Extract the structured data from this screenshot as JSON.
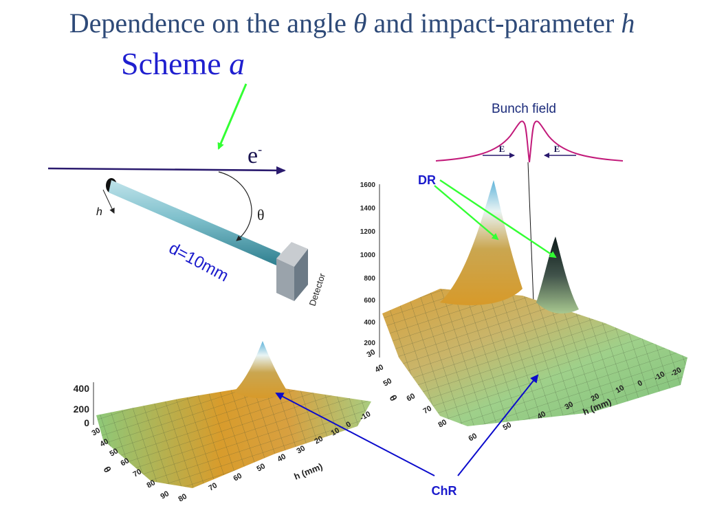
{
  "title": {
    "text": "Dependence on the angle",
    "theta": "θ",
    "and_text": "and impact-parameter",
    "h": "h"
  },
  "scheme": {
    "text": "Scheme",
    "letter": "a"
  },
  "setup": {
    "electron": "e",
    "electron_charge": "-",
    "h_label": "h",
    "theta_label": "θ",
    "distance_label": "d=10mm",
    "detector_label": "Detector"
  },
  "bunch_field": {
    "title": "Bunch field",
    "e_left": "E",
    "e_right": "E"
  },
  "annotations": {
    "dr": "DR",
    "chr": "ChR"
  },
  "plot_right": {
    "z_ticks": [
      "1600",
      "1400",
      "1200",
      "1000",
      "800",
      "600",
      "400",
      "200"
    ],
    "theta_ticks": [
      "30",
      "40",
      "50",
      "60",
      "70",
      "80"
    ],
    "theta_label": "θ",
    "h_ticks": [
      "60",
      "50",
      "40",
      "30",
      "20",
      "10",
      "0",
      "-10",
      "-20"
    ],
    "h_label": "h (mm)"
  },
  "plot_left": {
    "z_ticks": [
      "400",
      "200",
      "0"
    ],
    "theta_ticks": [
      "30",
      "40",
      "50",
      "60",
      "70",
      "80",
      "90"
    ],
    "theta_label": "θ",
    "h_ticks": [
      "80",
      "70",
      "60",
      "50",
      "40",
      "30",
      "20",
      "10",
      "0",
      "-10"
    ],
    "h_label": "h (mm)"
  },
  "colors": {
    "title": "#2e4a78",
    "scheme": "#1f1fcf",
    "annotation": "#1a1acc",
    "green_arrow": "#33ff33",
    "blue_arrow": "#0b0bcc",
    "beam": "#2a1a6e",
    "field_curve": "#c21a7a",
    "surface_green": "#8dc97a",
    "surface_orange": "#d79a2a"
  }
}
